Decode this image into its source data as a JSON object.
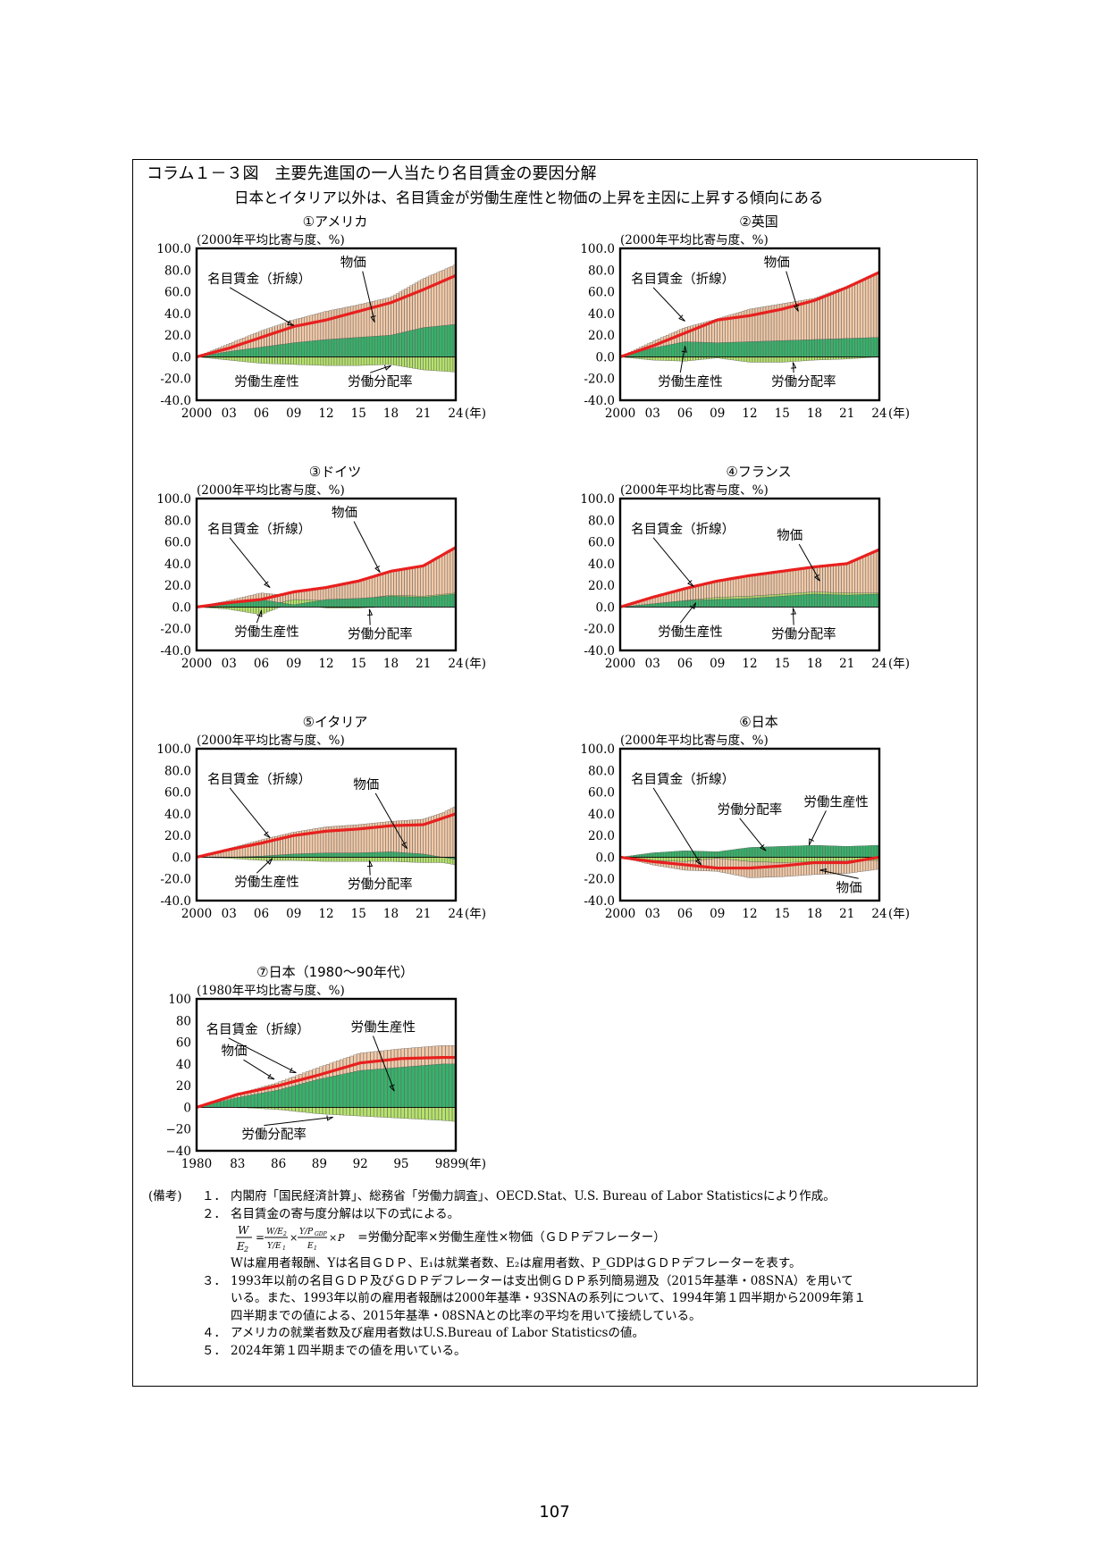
{
  "header": {
    "title": "コラム１－３図　主要先進国の一人当たり名目賃金の要因分解",
    "subtitle": "日本とイタリア以外は、名目賃金が労働生産性と物価の上昇を主因に上昇する傾向にある"
  },
  "colors": {
    "wage_line": "#e8201f",
    "price_bar": "#f2c9a7",
    "productivity_bar": "#36b36a",
    "labor_share_bar": "#b6e36b"
  },
  "chart_data": [
    {
      "type": "bar",
      "id": "usa",
      "title": "①アメリカ",
      "unit_label": "(2000年平均比寄与度、%)",
      "x_tick_labels": [
        "2000",
        "03",
        "06",
        "09",
        "12",
        "15",
        "18",
        "21",
        "24"
      ],
      "x_unit": "(年)",
      "y_tick_labels": [
        "100.0",
        "80.0",
        "60.0",
        "40.0",
        "20.0",
        "0.0",
        "-20.0",
        "-40.0"
      ],
      "ylim": [
        -40,
        100
      ],
      "xlim": [
        2000,
        2024
      ],
      "series_labels": {
        "wage": "名目賃金（折線）",
        "price": "物価",
        "productivity": "労働生産性",
        "labor_share": "労働分配率"
      },
      "years": [
        2000,
        2003,
        2006,
        2009,
        2012,
        2015,
        2018,
        2021,
        2024
      ],
      "wage": [
        0,
        8,
        18,
        28,
        34,
        42,
        50,
        62,
        75
      ],
      "price": [
        0,
        7,
        15,
        21,
        26,
        30,
        35,
        45,
        55
      ],
      "productivity": [
        0,
        5,
        9,
        13,
        16,
        18,
        20,
        27,
        30
      ],
      "labor_share": [
        0,
        -3,
        -6,
        -7,
        -8,
        -8,
        -7,
        -12,
        -14
      ],
      "annotations": [
        {
          "text": "名目賃金（折線）",
          "tx": 2001.0,
          "ty": 68,
          "ax": 2009.0,
          "ay": 29
        },
        {
          "text": "物価",
          "tx": 2013.3,
          "ty": 83,
          "ax": 2016.5,
          "ay": 32
        },
        {
          "text": "労働生産性",
          "tx": 2003.5,
          "ty": -27,
          "ax": null,
          "ay": null
        },
        {
          "text": "労働分配率",
          "tx": 2014.0,
          "ty": -27,
          "ax": 2018.0,
          "ay": -8
        }
      ]
    },
    {
      "type": "bar",
      "id": "uk",
      "title": "②英国",
      "unit_label": "(2000年平均比寄与度、%)",
      "x_tick_labels": [
        "2000",
        "03",
        "06",
        "09",
        "12",
        "15",
        "18",
        "21",
        "24"
      ],
      "x_unit": "(年)",
      "y_tick_labels": [
        "100.0",
        "80.0",
        "60.0",
        "40.0",
        "20.0",
        "0.0",
        "-20.0",
        "-40.0"
      ],
      "ylim": [
        -40,
        100
      ],
      "xlim": [
        2000,
        2024
      ],
      "series_labels": {
        "wage": "名目賃金（折線）",
        "price": "物価",
        "productivity": "労働生産性",
        "labor_share": "労働分配率"
      },
      "years": [
        2000,
        2003,
        2006,
        2009,
        2012,
        2015,
        2018,
        2021,
        2024
      ],
      "wage": [
        0,
        10,
        22,
        34,
        38,
        44,
        52,
        64,
        78
      ],
      "price": [
        0,
        6,
        13,
        22,
        30,
        34,
        38,
        48,
        60
      ],
      "productivity": [
        0,
        8,
        14,
        13,
        14,
        15,
        16,
        17,
        18
      ],
      "labor_share": [
        0,
        -3,
        -4,
        -1,
        -5,
        -5,
        -3,
        -2,
        0
      ],
      "annotations": [
        {
          "text": "名目賃金（折線）",
          "tx": 2001.0,
          "ty": 68,
          "ax": 2006.0,
          "ay": 33
        },
        {
          "text": "物価",
          "tx": 2013.3,
          "ty": 83,
          "ax": 2016.5,
          "ay": 42
        },
        {
          "text": "労働生産性",
          "tx": 2003.5,
          "ty": -27,
          "ax": 2006.0,
          "ay": 10
        },
        {
          "text": "労働分配率",
          "tx": 2014.0,
          "ty": -27,
          "ax": 2016.0,
          "ay": -5
        }
      ]
    },
    {
      "type": "bar",
      "id": "germany",
      "title": "③ドイツ",
      "unit_label": "(2000年平均比寄与度、%)",
      "x_tick_labels": [
        "2000",
        "03",
        "06",
        "09",
        "12",
        "15",
        "18",
        "21",
        "24"
      ],
      "x_unit": "(年)",
      "y_tick_labels": [
        "100.0",
        "80.0",
        "60.0",
        "40.0",
        "20.0",
        "0.0",
        "-20.0",
        "-40.0"
      ],
      "ylim": [
        -40,
        100
      ],
      "xlim": [
        2000,
        2024
      ],
      "series_labels": {
        "wage": "名目賃金（折線）",
        "price": "物価",
        "productivity": "労働生産性",
        "labor_share": "労働分配率"
      },
      "years": [
        2000,
        2003,
        2006,
        2009,
        2012,
        2015,
        2018,
        2021,
        2024
      ],
      "wage": [
        0,
        4,
        7,
        14,
        18,
        24,
        33,
        38,
        55
      ],
      "price": [
        0,
        3,
        6,
        8,
        12,
        17,
        22,
        28,
        42
      ],
      "productivity": [
        0,
        3,
        7,
        2,
        7,
        8,
        10,
        9,
        12
      ],
      "labor_share": [
        0,
        -2,
        -7,
        5,
        -1,
        -1,
        1,
        1,
        1
      ],
      "annotations": [
        {
          "text": "名目賃金（折線）",
          "tx": 2001.0,
          "ty": 68,
          "ax": 2006.8,
          "ay": 18
        },
        {
          "text": "物価",
          "tx": 2012.5,
          "ty": 83,
          "ax": 2017.0,
          "ay": 32
        },
        {
          "text": "労働生産性",
          "tx": 2003.5,
          "ty": -27,
          "ax": 2006.0,
          "ay": -3
        },
        {
          "text": "労働分配率",
          "tx": 2014.0,
          "ty": -29,
          "ax": 2016.0,
          "ay": -2
        }
      ]
    },
    {
      "type": "bar",
      "id": "france",
      "title": "④フランス",
      "unit_label": "(2000年平均比寄与度、%)",
      "x_tick_labels": [
        "2000",
        "03",
        "06",
        "09",
        "12",
        "15",
        "18",
        "21",
        "24"
      ],
      "x_unit": "(年)",
      "y_tick_labels": [
        "100.0",
        "80.0",
        "60.0",
        "40.0",
        "20.0",
        "0.0",
        "-20.0",
        "-40.0"
      ],
      "ylim": [
        -40,
        100
      ],
      "xlim": [
        2000,
        2024
      ],
      "series_labels": {
        "wage": "名目賃金（折線）",
        "price": "物価",
        "productivity": "労働生産性",
        "labor_share": "労働分配率"
      },
      "years": [
        2000,
        2003,
        2006,
        2009,
        2012,
        2015,
        2018,
        2021,
        2024
      ],
      "wage": [
        0,
        9,
        17,
        24,
        29,
        33,
        37,
        40,
        53
      ],
      "price": [
        0,
        6,
        11,
        15,
        19,
        21,
        23,
        27,
        40
      ],
      "productivity": [
        0,
        3,
        6,
        7,
        8,
        10,
        12,
        11,
        12
      ],
      "labor_share": [
        0,
        0,
        0,
        2,
        2,
        2,
        2,
        2,
        1
      ],
      "annotations": [
        {
          "text": "名目賃金（折線）",
          "tx": 2001.0,
          "ty": 68,
          "ax": 2006.8,
          "ay": 19
        },
        {
          "text": "物価",
          "tx": 2014.5,
          "ty": 62,
          "ax": 2018.5,
          "ay": 24
        },
        {
          "text": "労働生産性",
          "tx": 2003.5,
          "ty": -27,
          "ax": 2007.0,
          "ay": 4
        },
        {
          "text": "労働分配率",
          "tx": 2014.0,
          "ty": -29,
          "ax": 2016.0,
          "ay": -1
        }
      ]
    },
    {
      "type": "bar",
      "id": "italy",
      "title": "⑤イタリア",
      "unit_label": "(2000年平均比寄与度、%)",
      "x_tick_labels": [
        "2000",
        "03",
        "06",
        "09",
        "12",
        "15",
        "18",
        "21",
        "24"
      ],
      "x_unit": "(年)",
      "y_tick_labels": [
        "100.0",
        "80.0",
        "60.0",
        "40.0",
        "20.0",
        "0.0",
        "-20.0",
        "-40.0"
      ],
      "ylim": [
        -40,
        100
      ],
      "xlim": [
        2000,
        2024
      ],
      "series_labels": {
        "wage": "名目賃金（折線）",
        "price": "物価",
        "productivity": "労働生産性",
        "labor_share": "労働分配率"
      },
      "years": [
        2000,
        2003,
        2006,
        2009,
        2012,
        2015,
        2018,
        2021,
        2024
      ],
      "wage": [
        0,
        7,
        13,
        20,
        24,
        26,
        29,
        30,
        40
      ],
      "price": [
        0,
        8,
        15,
        20,
        24,
        26,
        28,
        32,
        47
      ],
      "productivity": [
        0,
        0,
        1,
        3,
        4,
        4,
        5,
        3,
        -2
      ],
      "labor_share": [
        0,
        -1,
        -3,
        -3,
        -4,
        -4,
        -4,
        -5,
        -5
      ],
      "annotations": [
        {
          "text": "名目賃金（折線）",
          "tx": 2001.0,
          "ty": 68,
          "ax": 2006.8,
          "ay": 18
        },
        {
          "text": "物価",
          "tx": 2014.5,
          "ty": 63,
          "ax": 2019.5,
          "ay": 8
        },
        {
          "text": "労働生産性",
          "tx": 2003.5,
          "ty": -27,
          "ax": 2007.0,
          "ay": -1
        },
        {
          "text": "労働分配率",
          "tx": 2014.0,
          "ty": -29,
          "ax": 2016.0,
          "ay": -3
        }
      ]
    },
    {
      "type": "bar",
      "id": "japan",
      "title": "⑥日本",
      "unit_label": "(2000年平均比寄与度、%)",
      "x_tick_labels": [
        "2000",
        "03",
        "06",
        "09",
        "12",
        "15",
        "18",
        "21",
        "24"
      ],
      "x_unit": "(年)",
      "y_tick_labels": [
        "100.0",
        "80.0",
        "60.0",
        "40.0",
        "20.0",
        "0.0",
        "-20.0",
        "-40.0"
      ],
      "ylim": [
        -40,
        100
      ],
      "xlim": [
        2000,
        2024
      ],
      "series_labels": {
        "wage": "名目賃金（折線）",
        "price": "物価",
        "productivity": "労働生産性",
        "labor_share": "労働分配率"
      },
      "years": [
        2000,
        2003,
        2006,
        2009,
        2012,
        2015,
        2018,
        2021,
        2024
      ],
      "wage": [
        0,
        -4,
        -7,
        -10,
        -10,
        -8,
        -5,
        -5,
        0
      ],
      "price": [
        0,
        -4,
        -8,
        -12,
        -15,
        -13,
        -12,
        -12,
        -8
      ],
      "productivity": [
        0,
        4,
        6,
        5,
        9,
        10,
        11,
        10,
        11
      ],
      "labor_share": [
        0,
        -3,
        -4,
        -1,
        -4,
        -5,
        -4,
        -3,
        -3
      ],
      "annotations": [
        {
          "text": "名目賃金（折線）",
          "tx": 2001.0,
          "ty": 68,
          "ax": 2007.5,
          "ay": -7
        },
        {
          "text": "労働分配率",
          "tx": 2009.0,
          "ty": 40,
          "ax": 2013.5,
          "ay": 6
        },
        {
          "text": "労働生産性",
          "tx": 2017.0,
          "ty": 47,
          "ax": 2017.5,
          "ay": 11
        },
        {
          "text": "物価",
          "tx": 2020.0,
          "ty": -32,
          "ax": 2018.5,
          "ay": -12
        }
      ]
    },
    {
      "type": "bar",
      "id": "japan_80s",
      "title": "⑦日本（1980～90年代）",
      "unit_label": "(1980年平均比寄与度、%)",
      "x_tick_labels": [
        "1980",
        "83",
        "86",
        "89",
        "92",
        "95",
        "9899"
      ],
      "x_unit": "(年)",
      "y_tick_labels": [
        "100",
        "80",
        "60",
        "40",
        "20",
        "0",
        "−20",
        "−40"
      ],
      "ylim": [
        -40,
        100
      ],
      "xlim": [
        1980,
        1999
      ],
      "series_labels": {
        "wage": "名目賃金（折線）",
        "price": "物価",
        "productivity": "労働生産性",
        "labor_share": "労働分配率"
      },
      "years": [
        1980,
        1983,
        1986,
        1989,
        1992,
        1995,
        1998,
        1999
      ],
      "wage": [
        0,
        12,
        20,
        30,
        41,
        45,
        46,
        46
      ],
      "price": [
        0,
        3,
        7,
        11,
        16,
        17,
        17,
        17
      ],
      "productivity": [
        0,
        9,
        16,
        26,
        34,
        37,
        40,
        40
      ],
      "labor_share": [
        0,
        0,
        -2,
        -6,
        -8,
        -10,
        -12,
        -13
      ],
      "annotations": [
        {
          "text": "名目賃金（折線）",
          "tx": 1980.7,
          "ty": 68,
          "ax": 1987.3,
          "ay": 32
        },
        {
          "text": "物価",
          "tx": 1981.8,
          "ty": 48,
          "ax": 1985.7,
          "ay": 26
        },
        {
          "text": "労働生産性",
          "tx": 1991.3,
          "ty": 70,
          "ax": 1994.5,
          "ay": 15
        },
        {
          "text": "労働分配率",
          "tx": 1983.3,
          "ty": -29,
          "ax": 1990.0,
          "ay": -9
        }
      ]
    }
  ],
  "notes": {
    "label": "(備考)",
    "items": [
      {
        "num": "１．",
        "text": "内閣府「国民経済計算」、総務省「労働力調査」、OECD.Stat、U.S. Bureau of Labor Statisticsにより作成。"
      },
      {
        "num": "２．",
        "text": "名目賃金の寄与度分解は以下の式による。"
      }
    ],
    "formula_text": "=労働分配率×労働生産性×物価（ＧＤＰデフレーター）",
    "formula_def": "Wは雇用者報酬、Yは名目ＧＤＰ、E₁は就業者数、E₂は雇用者数、P_GDPはＧＤＰデフレーターを表す。",
    "items2": [
      {
        "num": "３．",
        "text": "1993年以前の名目ＧＤＰ及びＧＤＰデフレーターは支出側ＧＤＰ系列簡易遡及（2015年基準・08SNA）を用いて"
      },
      {
        "num": "",
        "text": "いる。また、1993年以前の雇用者報酬は2000年基準・93SNAの系列について、1994年第１四半期から2009年第１"
      },
      {
        "num": "",
        "text": "四半期までの値による、2015年基準・08SNAとの比率の平均を用いて接続している。"
      },
      {
        "num": "４．",
        "text": "アメリカの就業者数及び雇用者数はU.S.Bureau of Labor Statisticsの値。"
      },
      {
        "num": "５．",
        "text": "2024年第１四半期までの値を用いている。"
      }
    ]
  },
  "page_number": "107"
}
